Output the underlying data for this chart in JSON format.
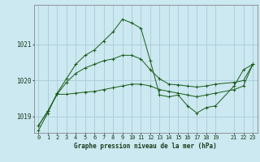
{
  "bg_color": "#cce8f0",
  "grid_color": "#a8ccd8",
  "line_color": "#1a5c1a",
  "xlabel": "Graphe pression niveau de la mer (hPa)",
  "xlim": [
    -0.5,
    23.5
  ],
  "ylim": [
    1018.55,
    1022.1
  ],
  "yticks": [
    1019,
    1020,
    1021
  ],
  "xticks": [
    0,
    1,
    2,
    3,
    4,
    5,
    6,
    7,
    8,
    9,
    10,
    11,
    12,
    13,
    14,
    15,
    16,
    17,
    18,
    19,
    21,
    22,
    23
  ],
  "series1_x": [
    0,
    1,
    2,
    3,
    4,
    5,
    6,
    7,
    8,
    9,
    10,
    11,
    12,
    13,
    14,
    15,
    16,
    17,
    18,
    19,
    21,
    22,
    23
  ],
  "series1_y": [
    1018.62,
    1019.1,
    1019.65,
    1020.05,
    1020.45,
    1020.7,
    1020.85,
    1021.1,
    1021.35,
    1021.7,
    1021.6,
    1021.45,
    1020.55,
    1019.6,
    1019.55,
    1019.6,
    1019.3,
    1019.1,
    1019.25,
    1019.3,
    1019.85,
    1020.3,
    1020.45
  ],
  "series2_x": [
    0,
    1,
    2,
    3,
    4,
    5,
    6,
    7,
    8,
    9,
    10,
    11,
    12,
    13,
    14,
    15,
    16,
    17,
    18,
    19,
    21,
    22,
    23
  ],
  "series2_y": [
    1018.75,
    1019.15,
    1019.62,
    1019.62,
    1019.65,
    1019.68,
    1019.7,
    1019.75,
    1019.8,
    1019.85,
    1019.9,
    1019.9,
    1019.85,
    1019.75,
    1019.7,
    1019.65,
    1019.6,
    1019.55,
    1019.6,
    1019.65,
    1019.75,
    1019.85,
    1020.45
  ],
  "series3_x": [
    0,
    1,
    2,
    3,
    4,
    5,
    6,
    7,
    8,
    9,
    10,
    11,
    12,
    13,
    14,
    15,
    16,
    17,
    18,
    19,
    21,
    22,
    23
  ],
  "series3_y": [
    1018.75,
    1019.15,
    1019.62,
    1019.95,
    1020.2,
    1020.35,
    1020.45,
    1020.55,
    1020.6,
    1020.7,
    1020.7,
    1020.6,
    1020.3,
    1020.05,
    1019.9,
    1019.88,
    1019.85,
    1019.82,
    1019.85,
    1019.9,
    1019.95,
    1020.0,
    1020.45
  ]
}
